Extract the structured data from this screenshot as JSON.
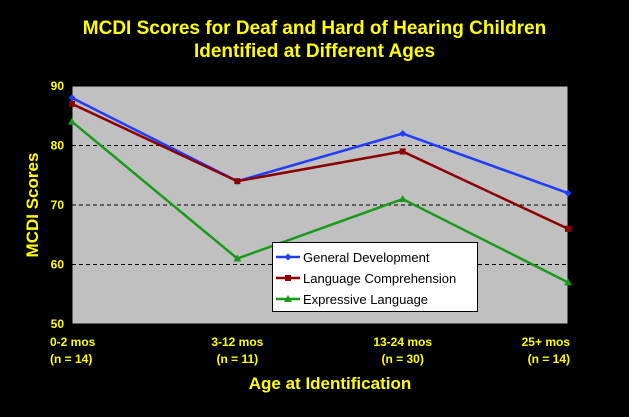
{
  "chart_data": {
    "type": "line",
    "title_line1": "MCDI Scores for Deaf and Hard of Hearing Children",
    "title_line2": "Identified at Different Ages",
    "xlabel": "Age at Identification",
    "ylabel": "MCDI Scores",
    "categories": [
      "0-2 mos",
      "3-12 mos",
      "13-24 mos",
      "25+ mos"
    ],
    "category_counts": [
      "(n = 14)",
      "(n = 11)",
      "(n = 30)",
      "(n = 14)"
    ],
    "ylim": [
      50,
      90
    ],
    "yticks": [
      50,
      60,
      70,
      80,
      90
    ],
    "grid": "horizontal dashed",
    "legend_position": "bottom-center",
    "series": [
      {
        "name": "General Development",
        "values": [
          88,
          74,
          82,
          72
        ],
        "color": "#1f3cff",
        "marker": "diamond"
      },
      {
        "name": "Language Comprehension",
        "values": [
          87,
          74,
          79,
          66
        ],
        "color": "#8b0000",
        "marker": "square"
      },
      {
        "name": "Expressive Language",
        "values": [
          84,
          61,
          71,
          57
        ],
        "color": "#1a9a1a",
        "marker": "triangle"
      }
    ],
    "colors": {
      "title": "#ffff00",
      "axis_text": "#ffff00",
      "plot_background": "#c0c0c0",
      "page_background": "#000000"
    }
  }
}
